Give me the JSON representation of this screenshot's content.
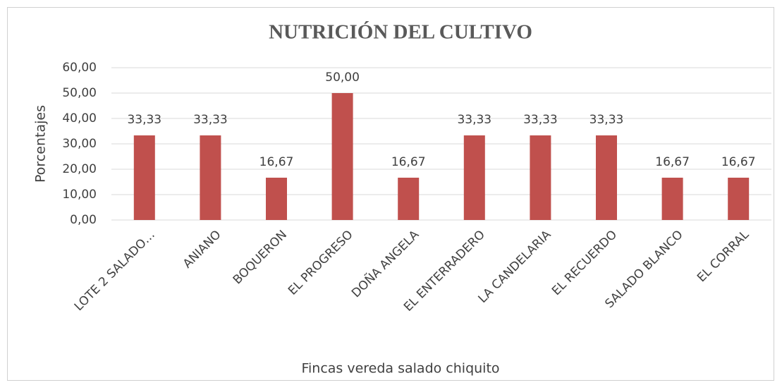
{
  "chart_data": {
    "type": "bar",
    "title": "NUTRICIÓN DEL CULTIVO",
    "x_label": "Fincas vereda salado chiquito",
    "y_label": "Porcentajes",
    "categories": [
      "LOTE 2 SALADO…",
      "ANIANO",
      "BOQUERON",
      "EL PROGRESO",
      "DOÑA ANGELA",
      "EL ENTERRADERO",
      "LA CANDELARIA",
      "EL RECUERDO",
      "SALADO BLANCO",
      "EL CORRAL"
    ],
    "values": [
      33.33,
      33.33,
      16.67,
      50,
      16.67,
      33.33,
      33.33,
      33.33,
      16.67,
      16.67
    ],
    "value_labels": [
      "33,33",
      "33,33",
      "16,67",
      "50,00",
      "16,67",
      "33,33",
      "33,33",
      "33,33",
      "16,67",
      "16,67"
    ],
    "color": "#c0504d",
    "ylim": [
      0,
      60
    ],
    "yticks": [
      {
        "value": 0,
        "label": "0,00"
      },
      {
        "value": 10,
        "label": "10,00"
      },
      {
        "value": 20,
        "label": "20,00"
      },
      {
        "value": 30,
        "label": "30,00"
      },
      {
        "value": 40,
        "label": "40,00"
      },
      {
        "value": 50,
        "label": "50,00"
      },
      {
        "value": 60,
        "label": "60,00"
      }
    ],
    "grid": true
  }
}
